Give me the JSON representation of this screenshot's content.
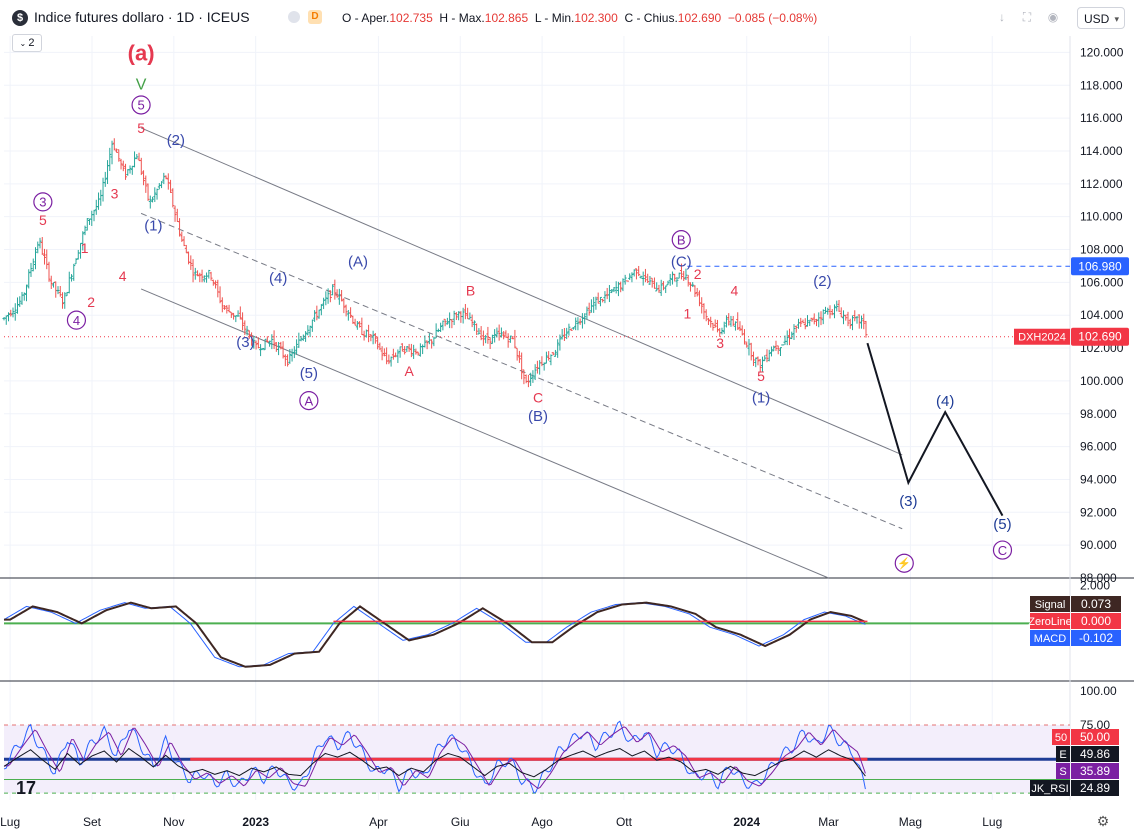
{
  "header": {
    "logo_symbol": "$",
    "title": "Indice futures dollaro · 1D · ICEUS",
    "d_badge": "D",
    "ohlc_prefix": "O - Aper.",
    "open": "102.735",
    "high_prefix": "H - Max.",
    "high": "102.865",
    "low_prefix": "L - Min.",
    "low": "102.300",
    "close_prefix": "C - Chius.",
    "close": "102.690",
    "change": "−0.085 (−0.08%)",
    "indicators_count": "2",
    "currency": "USD"
  },
  "chart_data": [
    {
      "type": "bar",
      "name": "price",
      "ylim": [
        88,
        121
      ],
      "y_ticks": [
        120,
        118,
        116,
        114,
        112,
        110,
        108,
        106,
        104,
        102,
        100,
        98,
        96,
        94,
        92,
        90,
        88
      ],
      "y_tick_labels": [
        "120.000",
        "118.000",
        "116.000",
        "114.000",
        "112.000",
        "110.000",
        "108.000",
        "106.000",
        "104.000",
        "102.000",
        "100.000",
        "98.000",
        "96.000",
        "94.000",
        "92.000",
        "90.000",
        "88.000"
      ],
      "x_tick_labels": [
        "Lug",
        "Set",
        "Nov",
        "2023",
        "Apr",
        "Giu",
        "Ago",
        "Ott",
        "2024",
        "Mar",
        "Mag",
        "Lug"
      ],
      "x_tick_positions": [
        0.0,
        2.0,
        4.0,
        6.0,
        9.0,
        11.0,
        13.0,
        15.0,
        18.0,
        20.0,
        22.0,
        24.0
      ],
      "price_path": [
        [
          -0.15,
          103.8
        ],
        [
          0.3,
          105.0
        ],
        [
          0.7,
          108.6
        ],
        [
          1.0,
          106.0
        ],
        [
          1.3,
          104.8
        ],
        [
          1.6,
          107.5
        ],
        [
          1.9,
          109.8
        ],
        [
          2.2,
          111.0
        ],
        [
          2.5,
          114.6
        ],
        [
          2.8,
          112.5
        ],
        [
          3.1,
          113.8
        ],
        [
          3.4,
          110.8
        ],
        [
          3.8,
          112.5
        ],
        [
          4.2,
          108.5
        ],
        [
          4.5,
          106.5
        ],
        [
          4.9,
          106.5
        ],
        [
          5.2,
          104.5
        ],
        [
          5.6,
          103.8
        ],
        [
          6.0,
          102.0
        ],
        [
          6.4,
          102.5
        ],
        [
          6.8,
          101.2
        ],
        [
          7.2,
          103.0
        ],
        [
          7.6,
          104.5
        ],
        [
          7.9,
          105.6
        ],
        [
          8.2,
          104.5
        ],
        [
          8.5,
          103.2
        ],
        [
          8.9,
          102.5
        ],
        [
          9.2,
          101.2
        ],
        [
          9.6,
          102.0
        ],
        [
          10.0,
          101.8
        ],
        [
          10.3,
          102.5
        ],
        [
          10.6,
          103.5
        ],
        [
          11.0,
          104.2
        ],
        [
          11.3,
          103.5
        ],
        [
          11.6,
          102.5
        ],
        [
          12.0,
          102.8
        ],
        [
          12.3,
          102.5
        ],
        [
          12.6,
          99.8
        ],
        [
          12.9,
          101.0
        ],
        [
          13.3,
          101.8
        ],
        [
          13.6,
          103.0
        ],
        [
          14.0,
          104.0
        ],
        [
          14.3,
          104.8
        ],
        [
          14.6,
          105.2
        ],
        [
          15.0,
          106.0
        ],
        [
          15.3,
          106.8
        ],
        [
          15.6,
          106.0
        ],
        [
          15.9,
          105.6
        ],
        [
          16.2,
          106.3
        ],
        [
          16.5,
          106.5
        ],
        [
          16.8,
          105.2
        ],
        [
          17.0,
          104.0
        ],
        [
          17.3,
          103.0
        ],
        [
          17.6,
          103.8
        ],
        [
          17.9,
          102.8
        ],
        [
          18.1,
          101.8
        ],
        [
          18.3,
          100.9
        ],
        [
          18.6,
          102.0
        ],
        [
          18.9,
          102.3
        ],
        [
          19.2,
          103.3
        ],
        [
          19.6,
          103.6
        ],
        [
          19.9,
          104.2
        ],
        [
          20.2,
          104.4
        ],
        [
          20.5,
          103.6
        ],
        [
          20.8,
          103.7
        ],
        [
          20.95,
          102.7
        ]
      ],
      "wave_labels": [
        {
          "text": "(a)",
          "x": 3.2,
          "y": 120.0,
          "color": "#e53950",
          "shape": "none",
          "size": 22
        },
        {
          "text": "V",
          "x": 3.2,
          "y": 118.1,
          "color": "#43a047",
          "shape": "none",
          "size": 16
        },
        {
          "text": "5",
          "x": 3.2,
          "y": 116.8,
          "color": "#7b1fa2",
          "shape": "circle",
          "size": 13
        },
        {
          "text": "5",
          "x": 3.2,
          "y": 115.4,
          "color": "#e53950",
          "shape": "none",
          "size": 14
        },
        {
          "text": "(2)",
          "x": 4.05,
          "y": 114.7,
          "color": "#3949ab",
          "shape": "none",
          "size": 15
        },
        {
          "text": "3",
          "x": 0.8,
          "y": 110.9,
          "color": "#7b1fa2",
          "shape": "circle",
          "size": 13
        },
        {
          "text": "5",
          "x": 0.8,
          "y": 109.8,
          "color": "#e53950",
          "shape": "none",
          "size": 14
        },
        {
          "text": "3",
          "x": 2.55,
          "y": 111.4,
          "color": "#e53950",
          "shape": "none",
          "size": 14
        },
        {
          "text": "(1)",
          "x": 3.5,
          "y": 109.5,
          "color": "#3949ab",
          "shape": "none",
          "size": 15
        },
        {
          "text": "1",
          "x": 1.82,
          "y": 108.1,
          "color": "#e53950",
          "shape": "none",
          "size": 14
        },
        {
          "text": "4",
          "x": 2.75,
          "y": 106.4,
          "color": "#e53950",
          "shape": "none",
          "size": 14
        },
        {
          "text": "2",
          "x": 1.98,
          "y": 104.8,
          "color": "#e53950",
          "shape": "none",
          "size": 14
        },
        {
          "text": "4",
          "x": 1.62,
          "y": 103.7,
          "color": "#7b1fa2",
          "shape": "circle",
          "size": 13
        },
        {
          "text": "(4)",
          "x": 6.55,
          "y": 106.3,
          "color": "#3949ab",
          "shape": "none",
          "size": 15
        },
        {
          "text": "(A)",
          "x": 8.5,
          "y": 107.3,
          "color": "#3949ab",
          "shape": "none",
          "size": 15
        },
        {
          "text": "B",
          "x": 11.25,
          "y": 105.5,
          "color": "#e53950",
          "shape": "none",
          "size": 14
        },
        {
          "text": "(3)",
          "x": 5.75,
          "y": 102.4,
          "color": "#3949ab",
          "shape": "none",
          "size": 15
        },
        {
          "text": "(5)",
          "x": 7.3,
          "y": 100.5,
          "color": "#3949ab",
          "shape": "none",
          "size": 15
        },
        {
          "text": "A",
          "x": 7.3,
          "y": 98.8,
          "color": "#7b1fa2",
          "shape": "circle",
          "size": 13
        },
        {
          "text": "A",
          "x": 9.75,
          "y": 100.6,
          "color": "#e53950",
          "shape": "none",
          "size": 14
        },
        {
          "text": "C",
          "x": 12.9,
          "y": 99.0,
          "color": "#e53950",
          "shape": "none",
          "size": 14
        },
        {
          "text": "(B)",
          "x": 12.9,
          "y": 97.9,
          "color": "#3949ab",
          "shape": "none",
          "size": 15
        },
        {
          "text": "B",
          "x": 16.4,
          "y": 108.6,
          "color": "#7b1fa2",
          "shape": "circle",
          "size": 13
        },
        {
          "text": "(C)",
          "x": 16.4,
          "y": 107.3,
          "color": "#3949ab",
          "shape": "none",
          "size": 15
        },
        {
          "text": "2",
          "x": 16.8,
          "y": 106.5,
          "color": "#e53950",
          "shape": "none",
          "size": 14
        },
        {
          "text": "4",
          "x": 17.7,
          "y": 105.5,
          "color": "#e53950",
          "shape": "none",
          "size": 14
        },
        {
          "text": "1",
          "x": 16.55,
          "y": 104.1,
          "color": "#e53950",
          "shape": "none",
          "size": 14
        },
        {
          "text": "3",
          "x": 17.35,
          "y": 102.3,
          "color": "#e53950",
          "shape": "none",
          "size": 14
        },
        {
          "text": "5",
          "x": 18.35,
          "y": 100.3,
          "color": "#e53950",
          "shape": "none",
          "size": 14
        },
        {
          "text": "(1)",
          "x": 18.35,
          "y": 99.0,
          "color": "#3949ab",
          "shape": "none",
          "size": 15
        },
        {
          "text": "(2)",
          "x": 19.85,
          "y": 106.1,
          "color": "#3949ab",
          "shape": "none",
          "size": 15
        },
        {
          "text": "(4)",
          "x": 22.85,
          "y": 98.8,
          "color": "#1e3c96",
          "shape": "none",
          "size": 15
        },
        {
          "text": "(3)",
          "x": 21.95,
          "y": 92.7,
          "color": "#1e3c96",
          "shape": "none",
          "size": 15
        },
        {
          "text": "(5)",
          "x": 24.25,
          "y": 91.3,
          "color": "#1e3c96",
          "shape": "none",
          "size": 15
        },
        {
          "text": "C",
          "x": 24.25,
          "y": 89.7,
          "color": "#7b1fa2",
          "shape": "circle",
          "size": 13
        }
      ],
      "projection": [
        [
          20.95,
          102.3
        ],
        [
          21.95,
          93.8
        ],
        [
          22.85,
          98.1
        ],
        [
          24.25,
          91.8
        ]
      ],
      "channel_upper": [
        [
          3.2,
          115.4
        ],
        [
          21.8,
          95.5
        ]
      ],
      "channel_mid": [
        [
          3.2,
          110.2
        ],
        [
          21.8,
          91.0
        ]
      ],
      "channel_lower": [
        [
          3.2,
          105.6
        ],
        [
          20.0,
          88.0
        ]
      ],
      "resistance_level": 106.98,
      "resistance_start_x": 16.55,
      "current_level": 102.69,
      "price_tags": [
        {
          "label": "",
          "value": "106.980",
          "y": 106.98,
          "bg": "#2962ff"
        },
        {
          "label": "DXH2024",
          "value": "102.690",
          "y": 102.69,
          "bg": "#f23645"
        }
      ],
      "lightning_icon": "lightning-icon"
    },
    {
      "type": "line",
      "name": "MACD",
      "ylim": [
        -3.0,
        2.3
      ],
      "y_ticks": [
        2.0
      ],
      "y_tick_labels": [
        "2.000"
      ],
      "series": [
        {
          "name": "Signal",
          "color": "#5d4037"
        },
        {
          "name": "ZeroLine",
          "color": "#e53950"
        },
        {
          "name": "MACD",
          "color": "#2962ff"
        }
      ],
      "macd_path": [
        [
          -0.15,
          0.2
        ],
        [
          0.4,
          0.9
        ],
        [
          1.0,
          0.6
        ],
        [
          1.6,
          0.0
        ],
        [
          2.2,
          0.7
        ],
        [
          2.8,
          1.1
        ],
        [
          3.3,
          0.8
        ],
        [
          3.9,
          0.9
        ],
        [
          4.4,
          0.0
        ],
        [
          5.0,
          -1.8
        ],
        [
          5.6,
          -2.3
        ],
        [
          6.2,
          -2.2
        ],
        [
          6.8,
          -1.6
        ],
        [
          7.4,
          -1.5
        ],
        [
          7.9,
          0.0
        ],
        [
          8.4,
          0.9
        ],
        [
          9.0,
          0.0
        ],
        [
          9.6,
          -0.9
        ],
        [
          10.2,
          -0.6
        ],
        [
          10.8,
          0.0
        ],
        [
          11.4,
          0.8
        ],
        [
          12.0,
          0.0
        ],
        [
          12.6,
          -1.0
        ],
        [
          13.1,
          -1.0
        ],
        [
          13.6,
          -0.2
        ],
        [
          14.2,
          0.6
        ],
        [
          14.8,
          1.0
        ],
        [
          15.4,
          1.1
        ],
        [
          16.0,
          0.9
        ],
        [
          16.6,
          0.5
        ],
        [
          17.1,
          -0.2
        ],
        [
          17.7,
          -0.6
        ],
        [
          18.3,
          -1.2
        ],
        [
          18.9,
          -0.6
        ],
        [
          19.4,
          0.2
        ],
        [
          19.9,
          0.6
        ],
        [
          20.4,
          0.4
        ],
        [
          20.95,
          -0.102
        ]
      ],
      "last_values": {
        "signal": "0.073",
        "zeroline": "0.000",
        "macd": "-0.102"
      },
      "signal_level": 0.073
    },
    {
      "type": "line",
      "name": "JK_RSI",
      "ylim": [
        20,
        105
      ],
      "y_ticks": [
        100,
        75
      ],
      "y_tick_labels": [
        "100.00",
        "75.00"
      ],
      "levels": [
        75,
        50,
        25
      ],
      "series": [
        {
          "name": "E",
          "color": "#1e3c96"
        },
        {
          "name": "S",
          "color": "#7b1fa2"
        },
        {
          "name": "JK_RSI",
          "color": "#131722"
        }
      ],
      "rsi_path": [
        [
          -0.15,
          45
        ],
        [
          0.2,
          60
        ],
        [
          0.5,
          72
        ],
        [
          0.8,
          55
        ],
        [
          1.1,
          40
        ],
        [
          1.4,
          66
        ],
        [
          1.7,
          48
        ],
        [
          2.0,
          62
        ],
        [
          2.3,
          70
        ],
        [
          2.6,
          52
        ],
        [
          2.9,
          74
        ],
        [
          3.2,
          60
        ],
        [
          3.5,
          44
        ],
        [
          3.8,
          63
        ],
        [
          4.1,
          46
        ],
        [
          4.4,
          35
        ],
        [
          4.7,
          40
        ],
        [
          5.0,
          32
        ],
        [
          5.3,
          38
        ],
        [
          5.6,
          30
        ],
        [
          5.9,
          42
        ],
        [
          6.2,
          36
        ],
        [
          6.5,
          44
        ],
        [
          6.8,
          32
        ],
        [
          7.1,
          30
        ],
        [
          7.4,
          50
        ],
        [
          7.7,
          66
        ],
        [
          8.0,
          60
        ],
        [
          8.3,
          68
        ],
        [
          8.6,
          55
        ],
        [
          8.9,
          40
        ],
        [
          9.2,
          44
        ],
        [
          9.5,
          30
        ],
        [
          9.8,
          42
        ],
        [
          10.1,
          36
        ],
        [
          10.4,
          55
        ],
        [
          10.7,
          66
        ],
        [
          11.0,
          60
        ],
        [
          11.3,
          45
        ],
        [
          11.6,
          30
        ],
        [
          11.9,
          45
        ],
        [
          12.2,
          50
        ],
        [
          12.5,
          35
        ],
        [
          12.8,
          28
        ],
        [
          13.1,
          40
        ],
        [
          13.4,
          55
        ],
        [
          13.7,
          63
        ],
        [
          14.0,
          70
        ],
        [
          14.3,
          60
        ],
        [
          14.6,
          68
        ],
        [
          14.9,
          74
        ],
        [
          15.2,
          62
        ],
        [
          15.5,
          70
        ],
        [
          15.8,
          55
        ],
        [
          16.1,
          60
        ],
        [
          16.4,
          52
        ],
        [
          16.7,
          36
        ],
        [
          17.0,
          40
        ],
        [
          17.3,
          32
        ],
        [
          17.6,
          45
        ],
        [
          17.9,
          34
        ],
        [
          18.2,
          30
        ],
        [
          18.5,
          40
        ],
        [
          18.8,
          52
        ],
        [
          19.1,
          58
        ],
        [
          19.4,
          70
        ],
        [
          19.7,
          60
        ],
        [
          20.0,
          72
        ],
        [
          20.3,
          62
        ],
        [
          20.6,
          55
        ],
        [
          20.95,
          24.89
        ]
      ],
      "e_level": 49.86,
      "last_values": {
        "level_50": "50",
        "level_50_value": "50.00",
        "e": "49.86",
        "s": "35.89",
        "jk_rsi": "24.89"
      },
      "tag_names": {
        "level_50": "50",
        "e": "E",
        "s": "S",
        "jk_rsi": "JK_RSI"
      }
    }
  ],
  "colors": {
    "up_bar": "#26a69a",
    "down_bar": "#ef5350",
    "axis_text": "#131722",
    "grid": "#f0f3fa",
    "separator": "#2a2e39",
    "channel": "#787b86",
    "projection": "#131722"
  },
  "icons": [
    "dollar-logo",
    "down-arrow-icon",
    "fullscreen-icon",
    "camera-icon",
    "lightning-icon",
    "settings-icon",
    "chevron-down-icon"
  ]
}
